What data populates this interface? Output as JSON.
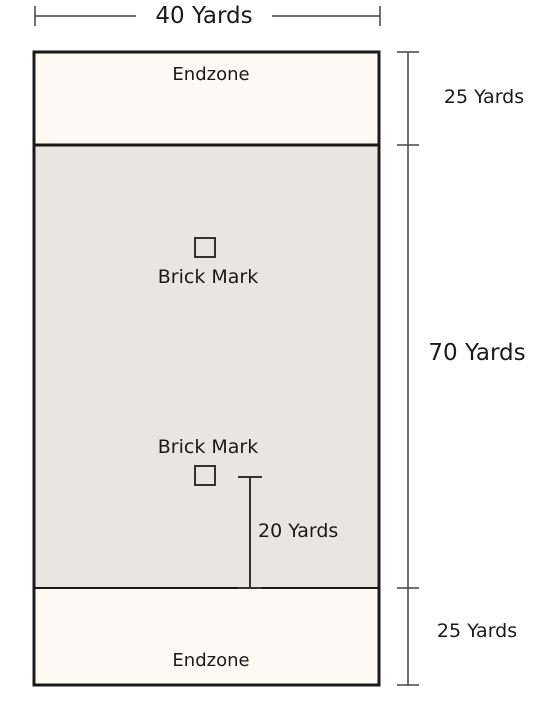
{
  "labels": {
    "width": "40 Yards",
    "endzone_top_length": "25 Yards",
    "field_length": "70 Yards",
    "endzone_bottom_length": "25 Yards",
    "brick_distance": "20 Yards"
  },
  "zones": {
    "endzone_top": "Endzone",
    "endzone_bottom": "Endzone"
  },
  "marks": {
    "brick_top": "Brick Mark",
    "brick_bottom": "Brick Mark"
  },
  "colors": {
    "endzone_fill": "#fdfaf3",
    "field_fill": "#e8e6e3",
    "line": "#1a1a1a",
    "dimension_line": "#444444"
  }
}
